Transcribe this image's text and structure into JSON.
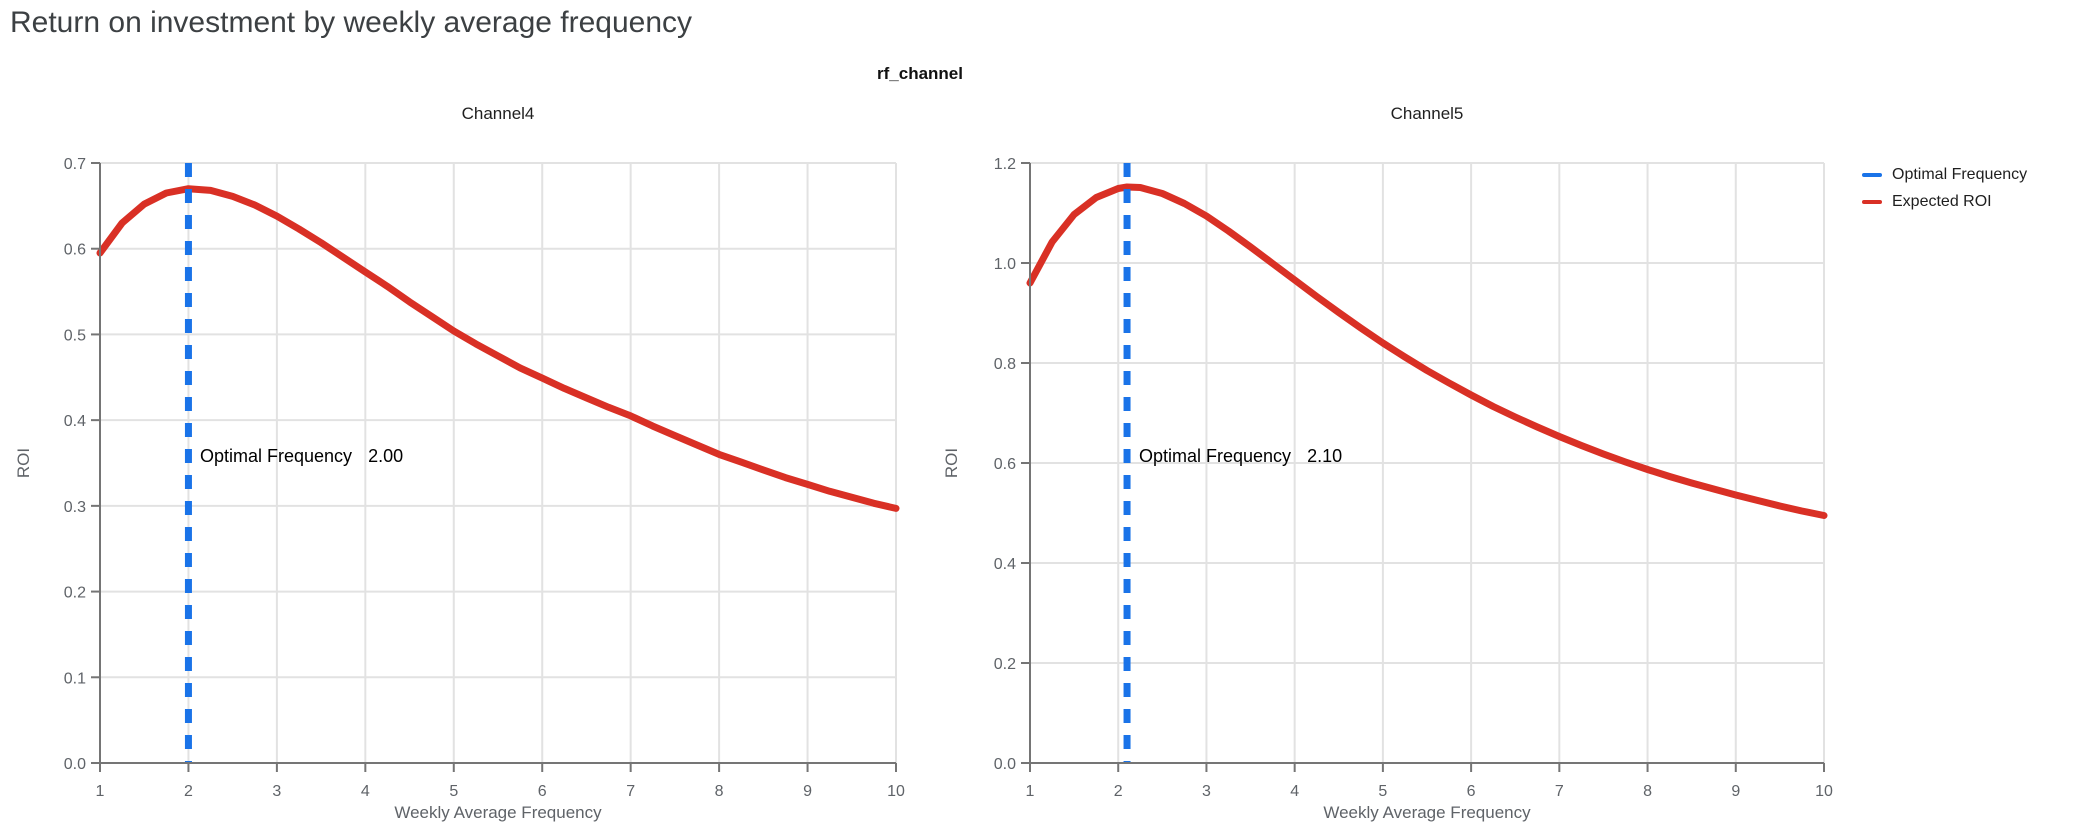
{
  "title": "Return on investment by weekly average frequency",
  "facet_label": "rf_channel",
  "legend": {
    "items": [
      {
        "label": "Optimal Frequency",
        "color": "#1a73e8"
      },
      {
        "label": "Expected ROI",
        "color": "#d93025"
      }
    ]
  },
  "colors": {
    "expected_roi": "#d93025",
    "optimal_frequency": "#1a73e8",
    "grid": "#e2e2e2",
    "axis": "#757575",
    "tick_label": "#5f6368"
  },
  "chart_data": [
    {
      "type": "line",
      "title": "Channel4",
      "xlabel": "Weekly Average Frequency",
      "ylabel": "ROI",
      "xlim": [
        1,
        10
      ],
      "ylim": [
        0,
        0.7
      ],
      "x_ticks": [
        "1",
        "2",
        "3",
        "4",
        "5",
        "6",
        "7",
        "8",
        "9",
        "10"
      ],
      "y_ticks": [
        "0.0",
        "0.1",
        "0.2",
        "0.3",
        "0.4",
        "0.5",
        "0.6",
        "0.7"
      ],
      "grid": true,
      "optimal_frequency": 2.0,
      "annotation": {
        "label": "Optimal Frequency",
        "value": "2.00"
      },
      "series": [
        {
          "name": "Expected ROI",
          "type": "line",
          "color": "#d93025",
          "x": [
            1,
            1.25,
            1.5,
            1.75,
            2,
            2.25,
            2.5,
            2.75,
            3,
            3.25,
            3.5,
            3.75,
            4,
            4.25,
            4.5,
            4.75,
            5,
            5.25,
            5.5,
            5.75,
            6,
            6.25,
            6.5,
            6.75,
            7,
            7.25,
            7.5,
            7.75,
            8,
            8.25,
            8.5,
            8.75,
            9,
            9.25,
            9.5,
            9.75,
            10
          ],
          "y": [
            0.595,
            0.63,
            0.652,
            0.665,
            0.67,
            0.668,
            0.661,
            0.651,
            0.638,
            0.623,
            0.607,
            0.59,
            0.573,
            0.556,
            0.538,
            0.521,
            0.504,
            0.489,
            0.475,
            0.461,
            0.449,
            0.437,
            0.426,
            0.415,
            0.405,
            0.393,
            0.382,
            0.371,
            0.36,
            0.351,
            0.342,
            0.333,
            0.325,
            0.317,
            0.31,
            0.303,
            0.297
          ]
        },
        {
          "name": "Optimal Frequency",
          "type": "vline",
          "style": "dashed",
          "color": "#1a73e8",
          "x": 2.0
        }
      ]
    },
    {
      "type": "line",
      "title": "Channel5",
      "xlabel": "Weekly Average Frequency",
      "ylabel": "ROI",
      "xlim": [
        1,
        10
      ],
      "ylim": [
        0,
        1.2
      ],
      "x_ticks": [
        "1",
        "2",
        "3",
        "4",
        "5",
        "6",
        "7",
        "8",
        "9",
        "10"
      ],
      "y_ticks": [
        "0.0",
        "0.2",
        "0.4",
        "0.6",
        "0.8",
        "1.0",
        "1.2"
      ],
      "grid": true,
      "optimal_frequency": 2.1,
      "annotation": {
        "label": "Optimal Frequency",
        "value": "2.10"
      },
      "series": [
        {
          "name": "Expected ROI",
          "type": "line",
          "color": "#d93025",
          "x": [
            1,
            1.25,
            1.5,
            1.75,
            2,
            2.1,
            2.25,
            2.5,
            2.75,
            3,
            3.25,
            3.5,
            3.75,
            4,
            4.25,
            4.5,
            4.75,
            5,
            5.25,
            5.5,
            5.75,
            6,
            6.25,
            6.5,
            6.75,
            7,
            7.25,
            7.5,
            7.75,
            8,
            8.25,
            8.5,
            8.75,
            9,
            9.25,
            9.5,
            9.75,
            10
          ],
          "y": [
            0.96,
            1.042,
            1.097,
            1.131,
            1.149,
            1.152,
            1.151,
            1.139,
            1.119,
            1.094,
            1.064,
            1.032,
            0.999,
            0.966,
            0.933,
            0.901,
            0.87,
            0.84,
            0.812,
            0.785,
            0.76,
            0.736,
            0.713,
            0.692,
            0.672,
            0.653,
            0.635,
            0.618,
            0.602,
            0.587,
            0.573,
            0.56,
            0.548,
            0.536,
            0.525,
            0.514,
            0.504,
            0.495
          ]
        },
        {
          "name": "Optimal Frequency",
          "type": "vline",
          "style": "dashed",
          "color": "#1a73e8",
          "x": 2.1
        }
      ]
    }
  ]
}
